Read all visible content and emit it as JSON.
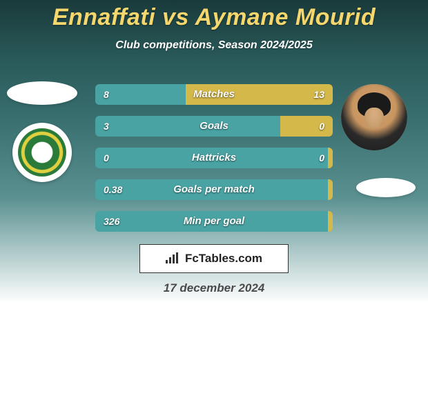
{
  "header": {
    "title": "Ennaffati vs Aymane Mourid",
    "subtitle": "Club competitions, Season 2024/2025"
  },
  "colors": {
    "left_fill": "#4aa3a3",
    "right_fill": "#d4b84a",
    "title_color": "#f5d76e"
  },
  "stats": [
    {
      "label": "Matches",
      "left_val": "8",
      "right_val": "13",
      "left_pct": 38
    },
    {
      "label": "Goals",
      "left_val": "3",
      "right_val": "0",
      "left_pct": 78
    },
    {
      "label": "Hattricks",
      "left_val": "0",
      "right_val": "0",
      "left_pct": 98
    },
    {
      "label": "Goals per match",
      "left_val": "0.38",
      "right_val": "",
      "left_pct": 98
    },
    {
      "label": "Min per goal",
      "left_val": "326",
      "right_val": "",
      "left_pct": 98
    }
  ],
  "branding": {
    "site": "FcTables.com"
  },
  "footer": {
    "date": "17 december 2024"
  }
}
